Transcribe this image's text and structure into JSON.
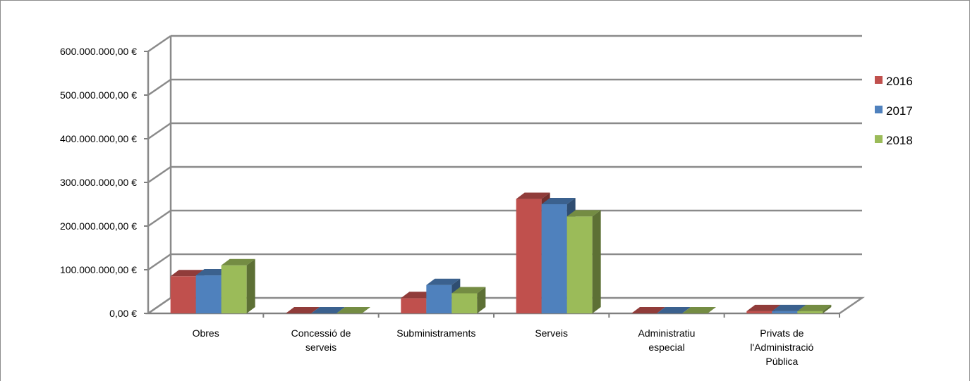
{
  "chart_data": {
    "type": "bar",
    "categories": [
      [
        "Obres"
      ],
      [
        "Concessió de",
        "serveis"
      ],
      [
        "Subministraments"
      ],
      [
        "Serveis"
      ],
      [
        "Administratiu",
        "especial"
      ],
      [
        "Privats de",
        "l'Administració",
        "Pública"
      ]
    ],
    "series": [
      {
        "name": "2016",
        "color": "#C0504D",
        "values": [
          85000000,
          0,
          35000000,
          262000000,
          0,
          5000000
        ]
      },
      {
        "name": "2017",
        "color": "#4F81BD",
        "values": [
          87000000,
          0,
          65000000,
          250000000,
          0,
          5000000
        ]
      },
      {
        "name": "2018",
        "color": "#9BBB59",
        "values": [
          110000000,
          0,
          46000000,
          222000000,
          0,
          5000000
        ]
      }
    ],
    "yticks": [
      "0,00 €",
      "100.000.000,00 €",
      "200.000.000,00 €",
      "300.000.000,00 €",
      "400.000.000,00 €",
      "500.000.000,00 €",
      "600.000.000,00 €"
    ],
    "ylim": [
      0,
      600000000
    ],
    "legend_position": "right",
    "grid": true,
    "view": "3d-clustered"
  }
}
